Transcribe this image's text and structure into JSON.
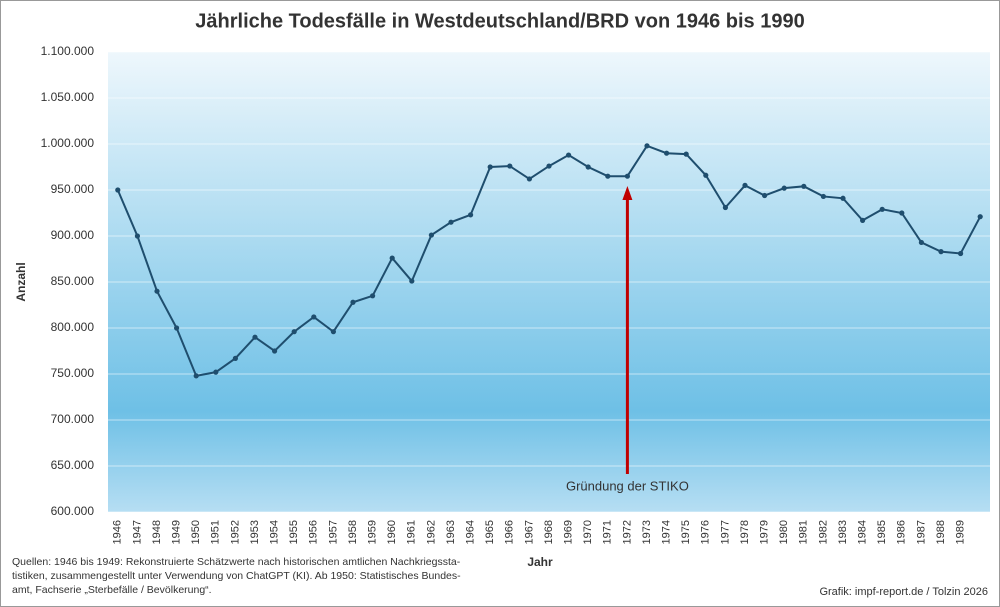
{
  "chart_data": {
    "type": "line",
    "title": "Jährliche Todesfälle in Westdeutschland/BRD von 1946 bis 1990",
    "y_label": "Anzahl",
    "x_label": "Jahr",
    "annotation": "Gründung der STIKO",
    "source": [
      "Quellen: 1946 bis 1949: Rekonstruierte Schätzwerte nach historischen amtlichen Nachkriegssta-",
      "tistiken, zusammengestellt unter Verwendung von ChatGPT (KI). Ab 1950: Statistisches Bundes-",
      "amt, Fachserie „Sterbefälle / Bevölkerung“."
    ],
    "credit": "Grafik: impf-report.de / Tolzin 2026",
    "categories": [
      "1946",
      "1947",
      "1948",
      "1949",
      "1950",
      "1951",
      "1952",
      "1953",
      "1954",
      "1955",
      "1956",
      "1957",
      "1958",
      "1959",
      "1960",
      "1961",
      "1962",
      "1963",
      "1964",
      "1965",
      "1966",
      "1967",
      "1968",
      "1969",
      "1970",
      "1971",
      "1972",
      "1973",
      "1974",
      "1975",
      "1976",
      "1977",
      "1978",
      "1979",
      "1980",
      "1981",
      "1982",
      "1983",
      "1984",
      "1985",
      "1986",
      "1987",
      "1988",
      "1989",
      null
    ],
    "series": [
      {
        "color": "#1f4e6e",
        "values": [
          950000,
          900000,
          840000,
          800000,
          748000,
          752000,
          767000,
          790000,
          775000,
          796000,
          812000,
          796000,
          828000,
          835000,
          876000,
          851000,
          901000,
          915000,
          923000,
          975000,
          976000,
          962000,
          976000,
          988000,
          975000,
          965000,
          965000,
          998000,
          990000,
          989000,
          966000,
          931000,
          955000,
          944000,
          952000,
          954000,
          943000,
          941000,
          917000,
          929000,
          925000,
          893000,
          883000,
          881000,
          921000
        ]
      }
    ],
    "ylim": [
      600000,
      1100000
    ],
    "yticks": [
      {
        "value": 600000,
        "label": "600.000"
      },
      {
        "value": 650000,
        "label": "650.000"
      },
      {
        "value": 700000,
        "label": "700.000"
      },
      {
        "value": 750000,
        "label": "750.000"
      },
      {
        "value": 800000,
        "label": "800.000"
      },
      {
        "value": 850000,
        "label": "850.000"
      },
      {
        "value": 900000,
        "label": "900.000"
      },
      {
        "value": 950000,
        "label": "950.000"
      },
      {
        "value": 1000000,
        "label": "1.000.000"
      },
      {
        "value": 1050000,
        "label": "1.050.000"
      },
      {
        "value": 1100000,
        "label": "1.100.000"
      }
    ],
    "grid": true
  }
}
